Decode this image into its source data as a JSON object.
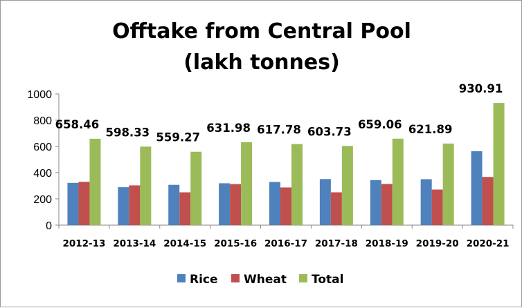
{
  "chart_data": {
    "type": "bar",
    "title": [
      "Offtake from Central Pool",
      "(lakh tonnes)"
    ],
    "xlabel": "",
    "ylabel": "",
    "categories": [
      "2012-13",
      "2013-14",
      "2014-15",
      "2015-16",
      "2016-17",
      "2017-18",
      "2018-19",
      "2019-20",
      "2020-21"
    ],
    "ylim": [
      0,
      1000
    ],
    "yticks": [
      0,
      200,
      400,
      600,
      800,
      1000
    ],
    "grid": false,
    "legend_position": "bottom",
    "series": [
      {
        "name": "Rice",
        "color": "#4F81BD",
        "values": [
          322,
          289,
          307,
          319,
          329,
          351,
          343,
          350,
          563
        ]
      },
      {
        "name": "Wheat",
        "color": "#C0504D",
        "values": [
          330,
          303,
          250,
          313,
          287,
          250,
          314,
          271,
          367
        ]
      },
      {
        "name": "Total",
        "color": "#9BBB59",
        "values": [
          658.46,
          598.33,
          559.27,
          631.98,
          617.78,
          603.73,
          659.06,
          621.89,
          930.91
        ]
      }
    ],
    "data_labels": {
      "series": "Total",
      "labels": [
        "658.46",
        "598.33",
        "559.27",
        "631.98",
        "617.78",
        "603.73",
        "659.06",
        "621.89",
        "930.91"
      ]
    }
  }
}
